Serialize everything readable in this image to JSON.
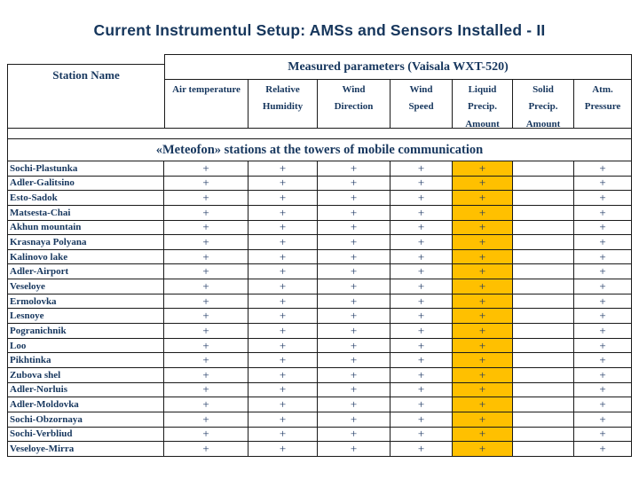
{
  "title": "Current Instrumentul Setup: AMSs and Sensors Installed - II",
  "colors": {
    "title_text": "#16365C",
    "table_text": "#17375E",
    "border": "#1A1A1A",
    "highlight_orange": "#FFC000"
  },
  "table": {
    "station_col_header": "Station Name",
    "group_header": "Measured parameters (Vaisala WXT-520)",
    "sub_headers": [
      "Air temperature",
      "Relative\nHumidity",
      "Wind\nDirection",
      "Wind\nSpeed",
      "Liquid\nPrecip.\nAmount",
      "Solid\nPrecip.\nAmount",
      "Atm.\nPressure"
    ],
    "section_title": "«Meteofon» stations at the towers of mobile communication",
    "highlight_column_index": 4,
    "stations": [
      {
        "name": "Sochi-Plastunka",
        "marks": [
          "+",
          "+",
          "+",
          "+",
          "+",
          "",
          "+"
        ]
      },
      {
        "name": "Adler-Galitsino",
        "marks": [
          "+",
          "+",
          "+",
          "+",
          "+",
          "",
          "+"
        ]
      },
      {
        "name": "Esto-Sadok",
        "marks": [
          "+",
          "+",
          "+",
          "+",
          "+",
          "",
          "+"
        ]
      },
      {
        "name": "Matsesta-Chai",
        "marks": [
          "+",
          "+",
          "+",
          "+",
          "+",
          "",
          "+"
        ]
      },
      {
        "name": "Akhun mountain",
        "marks": [
          "+",
          "+",
          "+",
          "+",
          "+",
          "",
          "+"
        ]
      },
      {
        "name": "Krasnaya Polyana",
        "marks": [
          "+",
          "+",
          "+",
          "+",
          "+",
          "",
          "+"
        ]
      },
      {
        "name": "Kalinovo lake",
        "marks": [
          "+",
          "+",
          "+",
          "+",
          "+",
          "",
          "+"
        ]
      },
      {
        "name": "Adler-Airport",
        "marks": [
          "+",
          "+",
          "+",
          "+",
          "+",
          "",
          "+"
        ]
      },
      {
        "name": "Veseloye",
        "marks": [
          "+",
          "+",
          "+",
          "+",
          "+",
          "",
          "+"
        ]
      },
      {
        "name": "Ermolovka",
        "marks": [
          "+",
          "+",
          "+",
          "+",
          "+",
          "",
          "+"
        ]
      },
      {
        "name": "Lesnoye",
        "marks": [
          "+",
          "+",
          "+",
          "+",
          "+",
          "",
          "+"
        ]
      },
      {
        "name": "Pogranichnik",
        "marks": [
          "+",
          "+",
          "+",
          "+",
          "+",
          "",
          "+"
        ]
      },
      {
        "name": "Loo",
        "marks": [
          "+",
          "+",
          "+",
          "+",
          "+",
          "",
          "+"
        ]
      },
      {
        "name": "Pikhtinka",
        "marks": [
          "+",
          "+",
          "+",
          "+",
          "+",
          "",
          "+"
        ]
      },
      {
        "name": "Zubova shel",
        "marks": [
          "+",
          "+",
          "+",
          "+",
          "+",
          "",
          "+"
        ]
      },
      {
        "name": "Adler-Norluis",
        "marks": [
          "+",
          "+",
          "+",
          "+",
          "+",
          "",
          "+"
        ]
      },
      {
        "name": "Adler-Moldovka",
        "marks": [
          "+",
          "+",
          "+",
          "+",
          "+",
          "",
          "+"
        ]
      },
      {
        "name": "Sochi-Obzornaya",
        "marks": [
          "+",
          "+",
          "+",
          "+",
          "+",
          "",
          "+"
        ]
      },
      {
        "name": "Sochi-Verbliud",
        "marks": [
          "+",
          "+",
          "+",
          "+",
          "+",
          "",
          "+"
        ]
      },
      {
        "name": "Veseloye-Mirra",
        "marks": [
          "+",
          "+",
          "+",
          "+",
          "+",
          "",
          "+"
        ]
      }
    ]
  }
}
